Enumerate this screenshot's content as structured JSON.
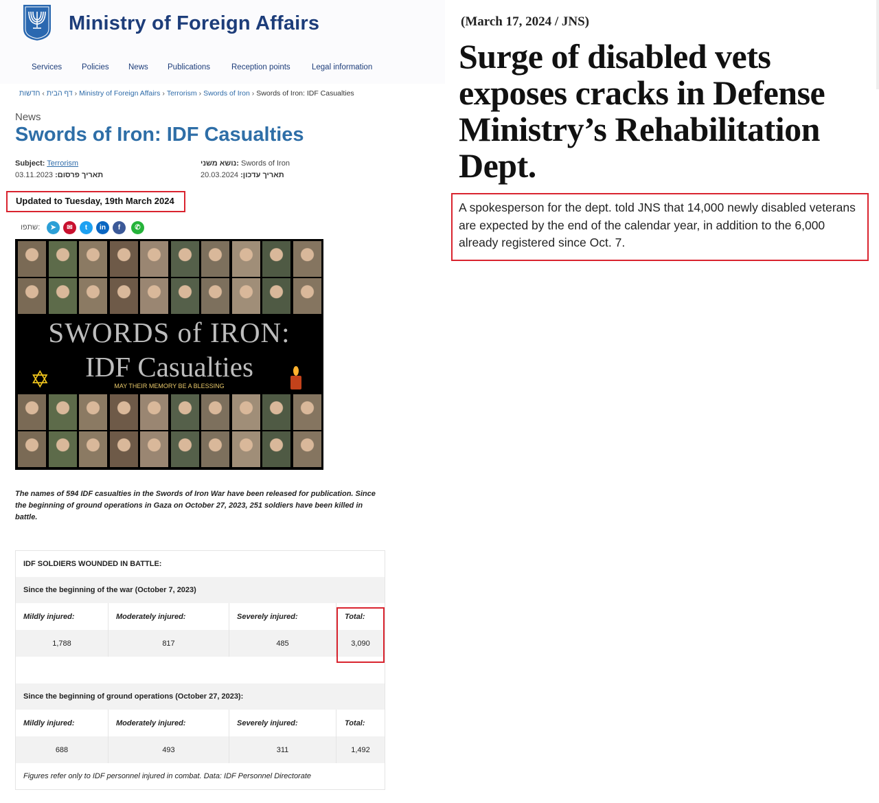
{
  "site": {
    "title": "Ministry of Foreign Affairs",
    "nav": [
      "Services",
      "Policies",
      "News",
      "Publications",
      "Reception points",
      "Legal information"
    ]
  },
  "breadcrumb": {
    "home": "דף הבית",
    "news": "חדשות",
    "items": [
      "Ministry of Foreign Affairs",
      "Terrorism",
      "Swords of Iron"
    ],
    "current": "Swords of Iron: IDF Casualties"
  },
  "article": {
    "category": "News",
    "title": "Swords of Iron: IDF Casualties",
    "subject_label": "Subject:",
    "subject_value": "Terrorism",
    "subject_he_label": "נושא משני:",
    "subject_he_value": "Swords of Iron",
    "published_label": "תאריך פרסום:",
    "published_value": "03.11.2023",
    "updated_he_label": "תאריך עדכון:",
    "updated_he_value": "20.03.2024",
    "updated_banner": "Updated to Tuesday, 19th March 2024",
    "share_label": "שתפו:",
    "image": {
      "line1": "SWORDS of IRON:",
      "line2": "IDF Casualties",
      "line3": "MAY THEIR MEMORY BE A BLESSING"
    },
    "caption": "The names of 594 IDF casualties in the Swords of Iron War have been released for publication. Since the beginning of ground operations in Gaza on October 27, 2023, 251 soldiers have been killed in battle."
  },
  "wounded_table": {
    "heading": "IDF SOLDIERS WOUNDED IN BATTLE:",
    "sections": [
      {
        "title": "Since the beginning of the war (October 7, 2023)",
        "columns": [
          "Mildly injured:",
          "Moderately injured:",
          "Severely injured:",
          "Total:"
        ],
        "values": [
          "1,788",
          "817",
          "485",
          "3,090"
        ]
      },
      {
        "title": "Since the beginning of ground operations (October 27, 2023):",
        "columns": [
          "Mildly injured:",
          "Moderately injured:",
          "Severely injured:",
          "Total:"
        ],
        "values": [
          "688",
          "493",
          "311",
          "1,492"
        ]
      }
    ],
    "footnote": "Figures refer only to IDF personnel injured in combat. Data: IDF Personnel Directorate"
  },
  "news_clip": {
    "dateline": "(March 17, 2024 / JNS)",
    "headline": "Surge of disabled vets exposes cracks in Defense Ministry’s Rehabilitation Dept.",
    "quote": "A spokesperson for the dept. told JNS that 14,000 newly disabled veterans are expected by the end of the calendar year, in addition to the 6,000 already registered since Oct. 7."
  },
  "colors": {
    "brand_blue": "#1d3d7a",
    "title_blue": "#2e6ea7",
    "highlight_red": "#d9232e"
  }
}
